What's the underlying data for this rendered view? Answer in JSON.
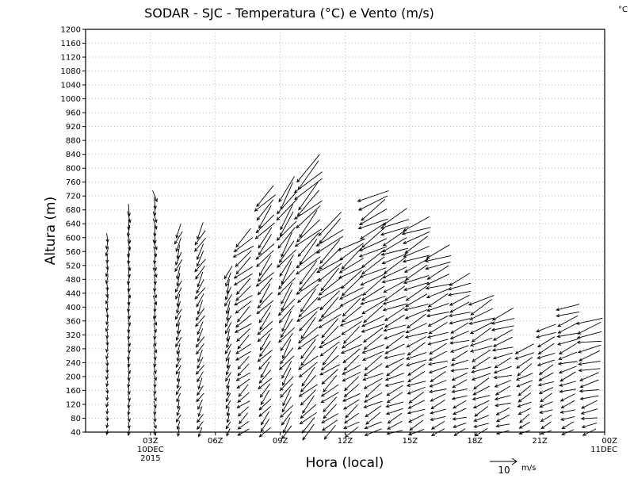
{
  "chart_data": {
    "type": "wind-barb",
    "title": "SODAR - SJC - Temperatura (°C) e Vento (m/s)",
    "unit_label": "°C",
    "ylabel": "Altura (m)",
    "xlabel": "Hora (local)",
    "ylim": [
      40,
      1200
    ],
    "y_ticks": [
      40,
      80,
      120,
      160,
      200,
      240,
      280,
      320,
      360,
      400,
      440,
      480,
      520,
      560,
      600,
      640,
      680,
      720,
      760,
      800,
      840,
      880,
      920,
      960,
      1000,
      1040,
      1080,
      1120,
      1160,
      1200
    ],
    "xlim": [
      0,
      24
    ],
    "x_ticks": [
      {
        "x": 3,
        "label": "03Z",
        "sub": [
          "10DEC",
          "2015"
        ]
      },
      {
        "x": 6,
        "label": "06Z",
        "sub": []
      },
      {
        "x": 9,
        "label": "09Z",
        "sub": []
      },
      {
        "x": 12,
        "label": "12Z",
        "sub": []
      },
      {
        "x": 15,
        "label": "15Z",
        "sub": []
      },
      {
        "x": 18,
        "label": "18Z",
        "sub": []
      },
      {
        "x": 21,
        "label": "21Z",
        "sub": []
      },
      {
        "x": 24,
        "label": "00Z",
        "sub": [
          "11DEC"
        ]
      }
    ],
    "grid": true,
    "reference_vector": {
      "speed": 10,
      "label": "10",
      "unit": "m/s"
    },
    "profiles": [
      {
        "x": 1.0,
        "top": 600,
        "dir": 185,
        "speed": 3
      },
      {
        "x": 2.0,
        "top": 680,
        "dir": 178,
        "speed": 4
      },
      {
        "x": 3.2,
        "top": 720,
        "dir": 170,
        "speed": 4
      },
      {
        "x": 4.3,
        "top": 620,
        "dir": 200,
        "speed": 5
      },
      {
        "x": 5.3,
        "top": 620,
        "dir": 210,
        "speed": 6
      },
      {
        "x": 6.6,
        "top": 500,
        "dir": 200,
        "speed": 5
      },
      {
        "x": 7.3,
        "top": 600,
        "dir": 230,
        "speed": 8
      },
      {
        "x": 8.3,
        "top": 720,
        "dir": 220,
        "speed": 9
      },
      {
        "x": 9.3,
        "top": 740,
        "dir": 215,
        "speed": 10
      },
      {
        "x": 10.3,
        "top": 800,
        "dir": 225,
        "speed": 12
      },
      {
        "x": 11.3,
        "top": 640,
        "dir": 230,
        "speed": 11
      },
      {
        "x": 12.3,
        "top": 580,
        "dir": 235,
        "speed": 10
      },
      {
        "x": 13.3,
        "top": 720,
        "dir": 240,
        "speed": 11
      },
      {
        "x": 14.3,
        "top": 660,
        "dir": 245,
        "speed": 10
      },
      {
        "x": 15.3,
        "top": 640,
        "dir": 245,
        "speed": 10
      },
      {
        "x": 16.3,
        "top": 560,
        "dir": 248,
        "speed": 9
      },
      {
        "x": 17.3,
        "top": 480,
        "dir": 250,
        "speed": 8
      },
      {
        "x": 18.3,
        "top": 420,
        "dir": 245,
        "speed": 9
      },
      {
        "x": 19.3,
        "top": 380,
        "dir": 250,
        "speed": 8
      },
      {
        "x": 20.3,
        "top": 280,
        "dir": 240,
        "speed": 7
      },
      {
        "x": 21.3,
        "top": 340,
        "dir": 245,
        "speed": 7
      },
      {
        "x": 22.3,
        "top": 400,
        "dir": 250,
        "speed": 8
      },
      {
        "x": 23.3,
        "top": 360,
        "dir": 255,
        "speed": 9
      }
    ]
  }
}
